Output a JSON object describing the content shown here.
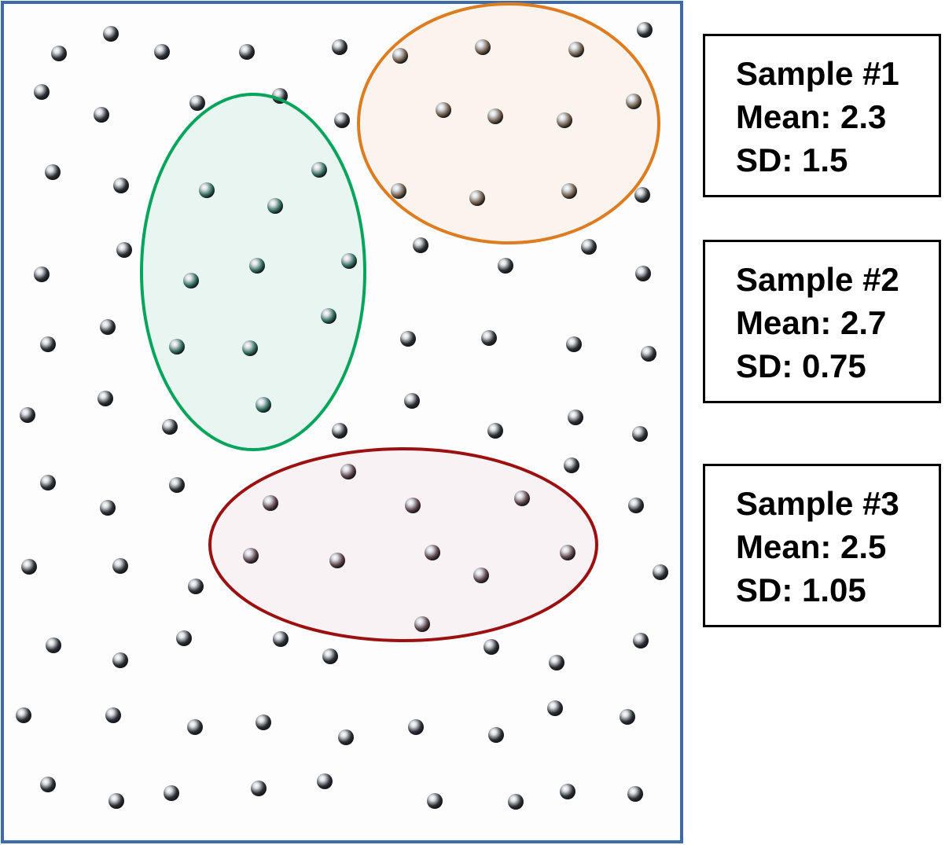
{
  "colors": {
    "population_border": "#3d6aa8",
    "population_fill": "#fdfdfd",
    "ball_dark": "#2b2f33",
    "ball_light": "#d9dde2",
    "sample_1_stroke": "#dd7d22",
    "sample_1_fill": "#fbf4ee",
    "sample_1_ball": "#6e5a48",
    "sample_2_stroke": "#07a45c",
    "sample_2_fill": "#e9f5f1",
    "sample_2_ball": "#2e6a5c",
    "sample_3_stroke": "#9b1010",
    "sample_3_fill": "#f8f2f4",
    "sample_3_ball": "#5b4148",
    "box_border": "#000000"
  },
  "samples": [
    {
      "title": "Sample #1",
      "mean": "Mean: 2.3",
      "sd": "SD: 1.5"
    },
    {
      "title": "Sample #2",
      "mean": "Mean: 2.7",
      "sd": "SD: 0.75"
    },
    {
      "title": "Sample #3",
      "mean": "Mean: 2.5",
      "sd": "SD: 1.05"
    }
  ]
}
